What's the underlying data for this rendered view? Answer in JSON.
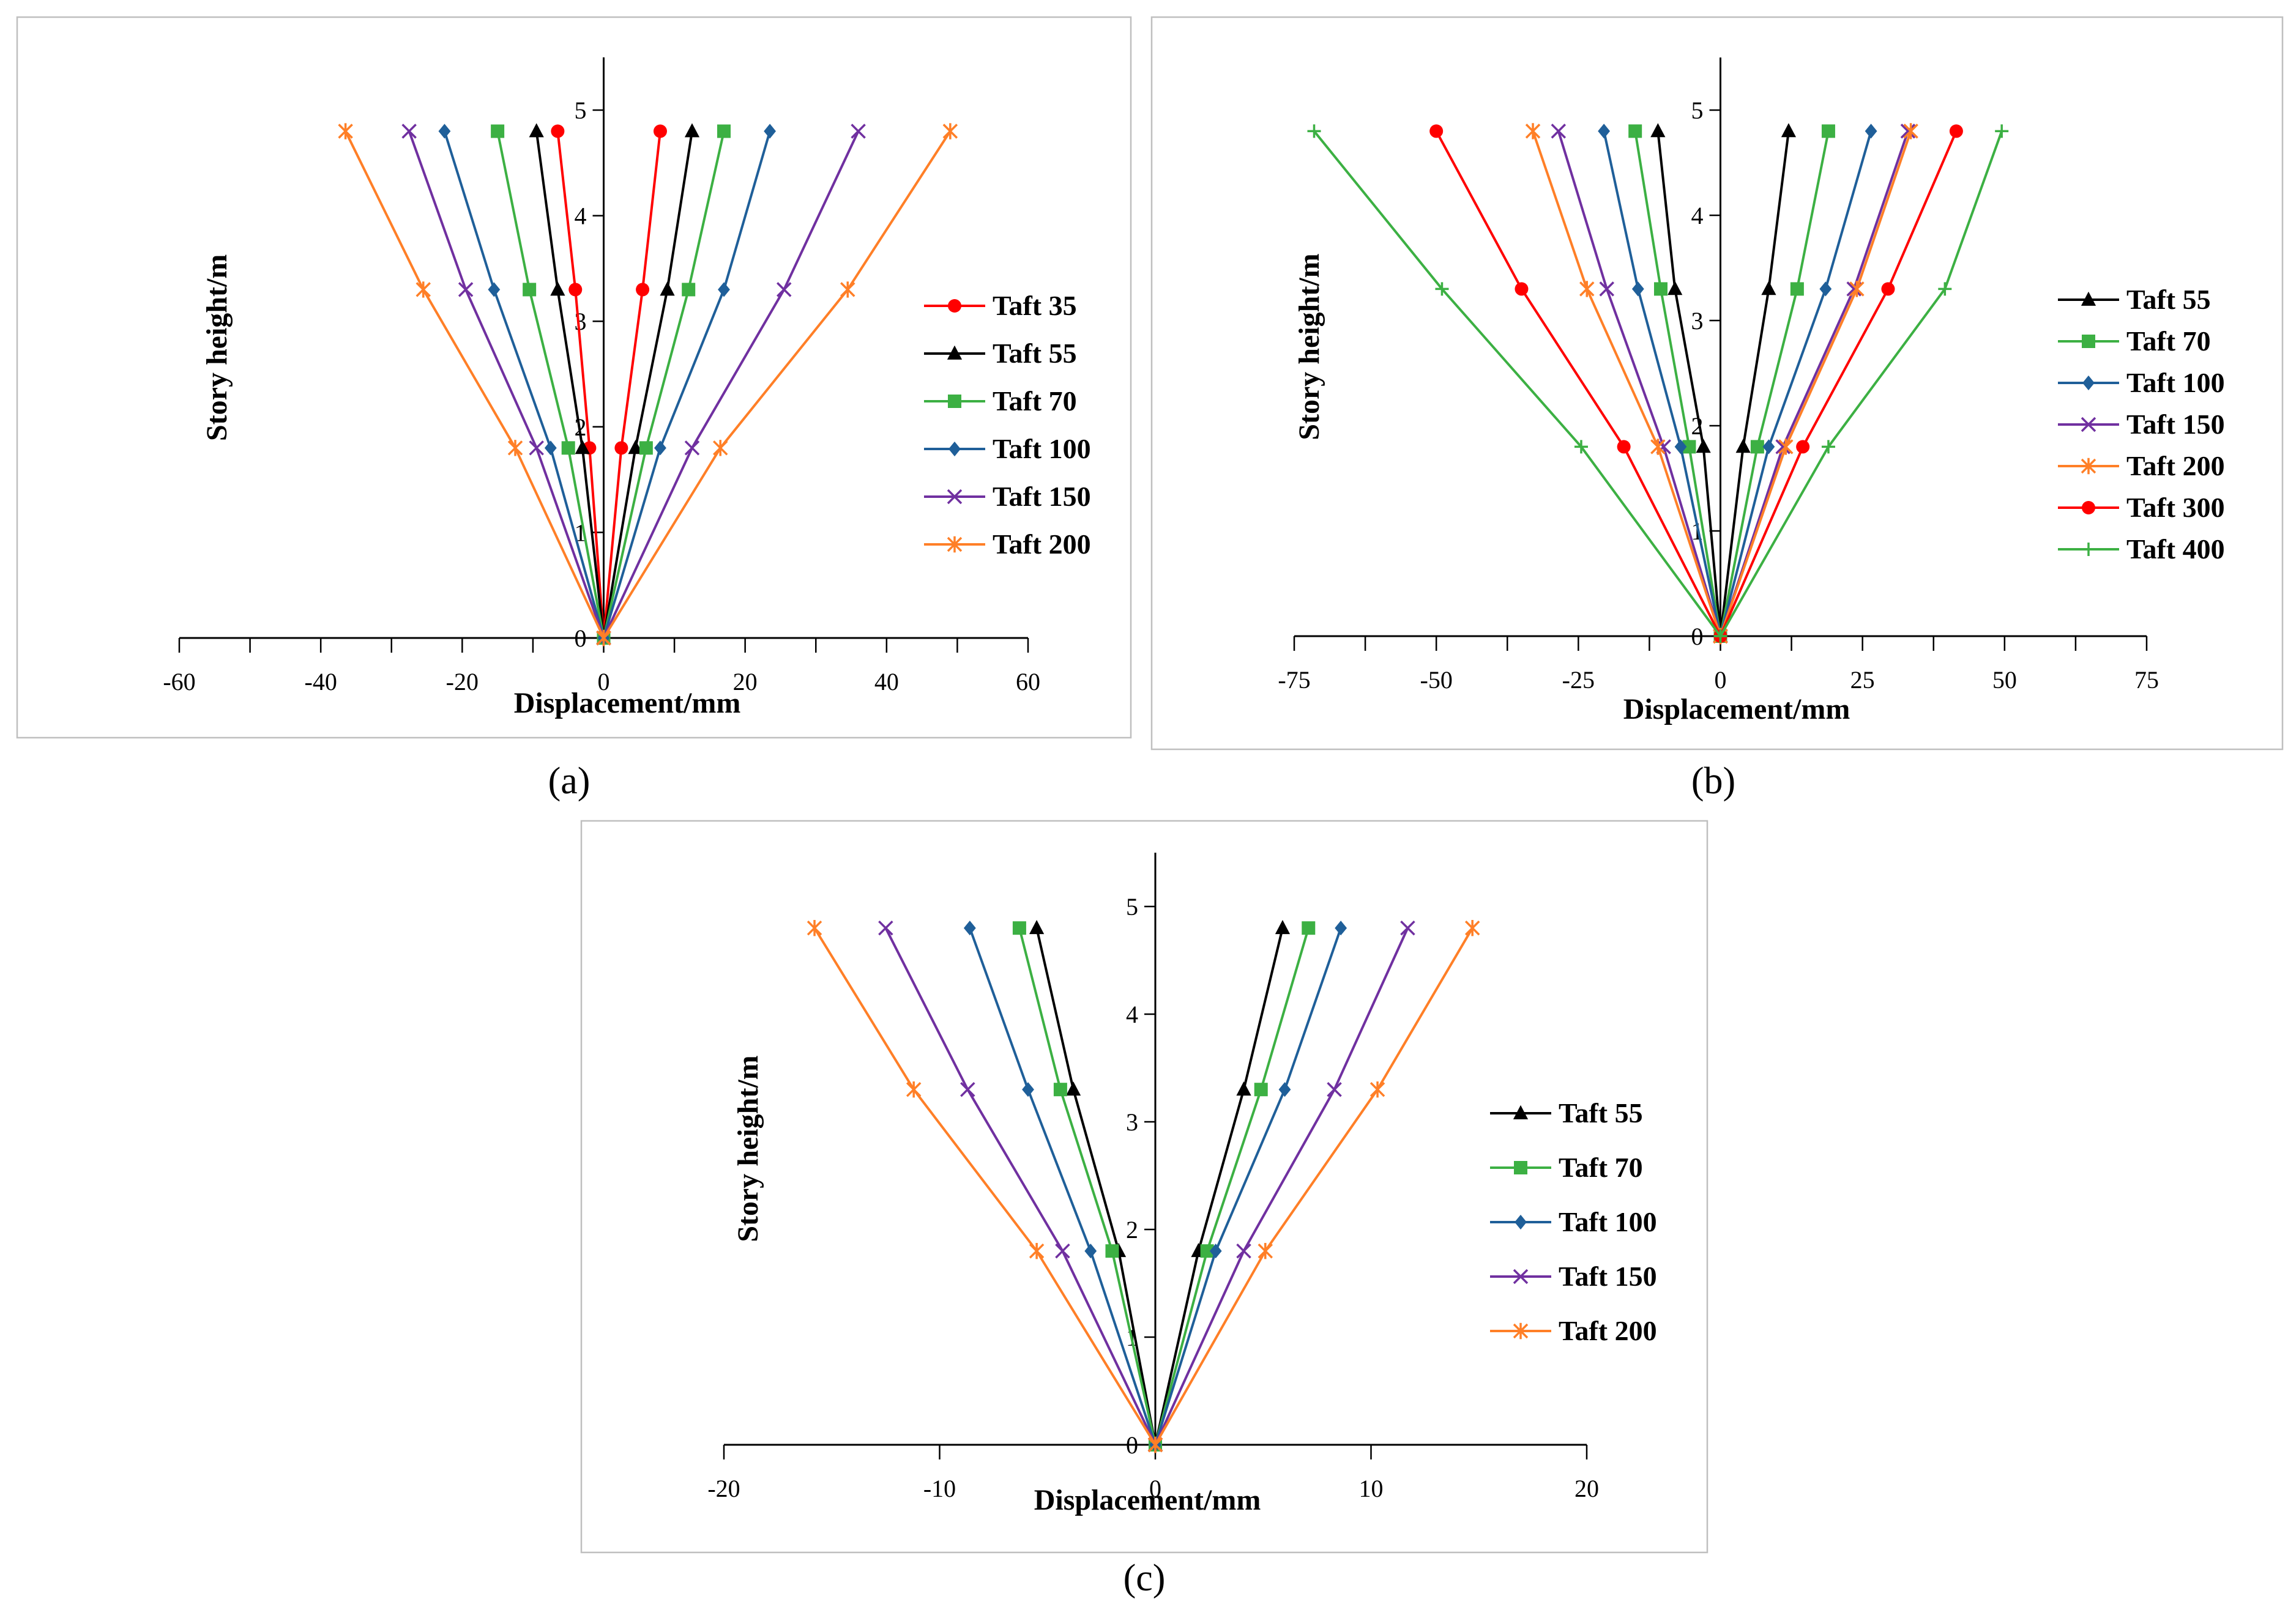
{
  "panels": [
    {
      "label": "(a)",
      "chart_data": {
        "type": "line",
        "xlabel": "Displacement/mm",
        "ylabel": "Story height/m",
        "xlim": [
          -60,
          60
        ],
        "ylim": [
          0,
          5.5
        ],
        "xticks": [
          "-60",
          "-40",
          "-20",
          "0",
          "20",
          "40",
          "60"
        ],
        "yticks": [
          "0",
          "1",
          "2",
          "3",
          "4",
          "5"
        ],
        "legend_position": "right",
        "series": [
          {
            "name": "Taft 35",
            "color": "#ff0000",
            "marker": "circle",
            "right": [
              0,
              2.5,
              5.5,
              8.0
            ],
            "left": [
              0,
              -2.0,
              -4.0,
              -6.5
            ]
          },
          {
            "name": "Taft 55",
            "color": "#000000",
            "marker": "triangle",
            "right": [
              0,
              4.5,
              9.0,
              12.5
            ],
            "left": [
              0,
              -3.0,
              -6.5,
              -9.5
            ]
          },
          {
            "name": "Taft 70",
            "color": "#3cb043",
            "marker": "square",
            "right": [
              0,
              6.0,
              12.0,
              17.0
            ],
            "left": [
              0,
              -5.0,
              -10.5,
              -15.0
            ]
          },
          {
            "name": "Taft 100",
            "color": "#1f5f99",
            "marker": "diamond",
            "right": [
              0,
              8.0,
              17.0,
              23.5
            ],
            "left": [
              0,
              -7.5,
              -15.5,
              -22.5
            ]
          },
          {
            "name": "Taft 150",
            "color": "#7030a0",
            "marker": "x",
            "right": [
              0,
              12.5,
              25.5,
              36.0
            ],
            "left": [
              0,
              -9.5,
              -19.5,
              -27.5
            ]
          },
          {
            "name": "Taft 200",
            "color": "#ff7f27",
            "marker": "star",
            "right": [
              0,
              16.5,
              34.5,
              49.0
            ],
            "left": [
              0,
              -12.5,
              -25.5,
              -36.5
            ]
          }
        ],
        "heights": [
          0,
          1.8,
          3.3,
          4.8
        ]
      }
    },
    {
      "label": "(b)",
      "chart_data": {
        "type": "line",
        "xlabel": "Displacement/mm",
        "ylabel": "Story height/m",
        "xlim": [
          -75,
          75
        ],
        "ylim": [
          0,
          5.5
        ],
        "xticks": [
          "-75",
          "-50",
          "-25",
          "0",
          "25",
          "50",
          "75"
        ],
        "yticks": [
          "0",
          "1",
          "2",
          "3",
          "4",
          "5"
        ],
        "legend_position": "right",
        "series": [
          {
            "name": "Taft 55",
            "color": "#000000",
            "marker": "triangle",
            "right": [
              0,
              4.0,
              8.5,
              12.0
            ],
            "left": [
              0,
              -3.0,
              -8.0,
              -11.0
            ]
          },
          {
            "name": "Taft 70",
            "color": "#3cb043",
            "marker": "square",
            "right": [
              0,
              6.5,
              13.5,
              19.0
            ],
            "left": [
              0,
              -5.5,
              -10.5,
              -15.0
            ]
          },
          {
            "name": "Taft 100",
            "color": "#1f5f99",
            "marker": "diamond",
            "right": [
              0,
              8.5,
              18.5,
              26.5
            ],
            "left": [
              0,
              -7.0,
              -14.5,
              -20.5
            ]
          },
          {
            "name": "Taft 150",
            "color": "#7030a0",
            "marker": "x",
            "right": [
              0,
              11.0,
              23.5,
              33.0
            ],
            "left": [
              0,
              -10.0,
              -20.0,
              -28.5
            ]
          },
          {
            "name": "Taft 200",
            "color": "#ff7f27",
            "marker": "star",
            "right": [
              0,
              11.5,
              24.0,
              33.5
            ],
            "left": [
              0,
              -11.0,
              -23.5,
              -33.0
            ]
          },
          {
            "name": "Taft 300",
            "color": "#ff0000",
            "marker": "circle",
            "right": [
              0,
              14.5,
              29.5,
              41.5
            ],
            "left": [
              0,
              -17.0,
              -35.0,
              -50.0
            ]
          },
          {
            "name": "Taft 400",
            "color": "#3cb043",
            "marker": "plus",
            "right": [
              0,
              19.0,
              39.5,
              49.5
            ],
            "left": [
              0,
              -24.5,
              -49.0,
              -71.5
            ]
          }
        ],
        "heights": [
          0,
          1.8,
          3.3,
          4.8
        ]
      }
    },
    {
      "label": "(c)",
      "chart_data": {
        "type": "line",
        "xlabel": "Displacement/mm",
        "ylabel": "Story height/m",
        "xlim": [
          -20,
          20
        ],
        "ylim": [
          0,
          5.5
        ],
        "xticks": [
          "-20",
          "-10",
          "0",
          "10",
          "20"
        ],
        "yticks": [
          "0",
          "1",
          "2",
          "3",
          "4",
          "5"
        ],
        "legend_position": "right",
        "series": [
          {
            "name": "Taft 55",
            "color": "#000000",
            "marker": "triangle",
            "right": [
              0,
              2.0,
              4.1,
              5.9
            ],
            "left": [
              0,
              -1.7,
              -3.8,
              -5.5
            ]
          },
          {
            "name": "Taft 70",
            "color": "#3cb043",
            "marker": "square",
            "right": [
              0,
              2.4,
              4.9,
              7.1
            ],
            "left": [
              0,
              -2.0,
              -4.4,
              -6.3
            ]
          },
          {
            "name": "Taft 100",
            "color": "#1f5f99",
            "marker": "diamond",
            "right": [
              0,
              2.8,
              6.0,
              8.6
            ],
            "left": [
              0,
              -3.0,
              -5.9,
              -8.6
            ]
          },
          {
            "name": "Taft 150",
            "color": "#7030a0",
            "marker": "x",
            "right": [
              0,
              4.1,
              8.3,
              11.7
            ],
            "left": [
              0,
              -4.3,
              -8.7,
              -12.5
            ]
          },
          {
            "name": "Taft 200",
            "color": "#ff7f27",
            "marker": "star",
            "right": [
              0,
              5.1,
              10.3,
              14.7
            ],
            "left": [
              0,
              -5.5,
              -11.2,
              -15.8
            ]
          }
        ],
        "heights": [
          0,
          1.8,
          3.3,
          4.8
        ]
      }
    }
  ]
}
